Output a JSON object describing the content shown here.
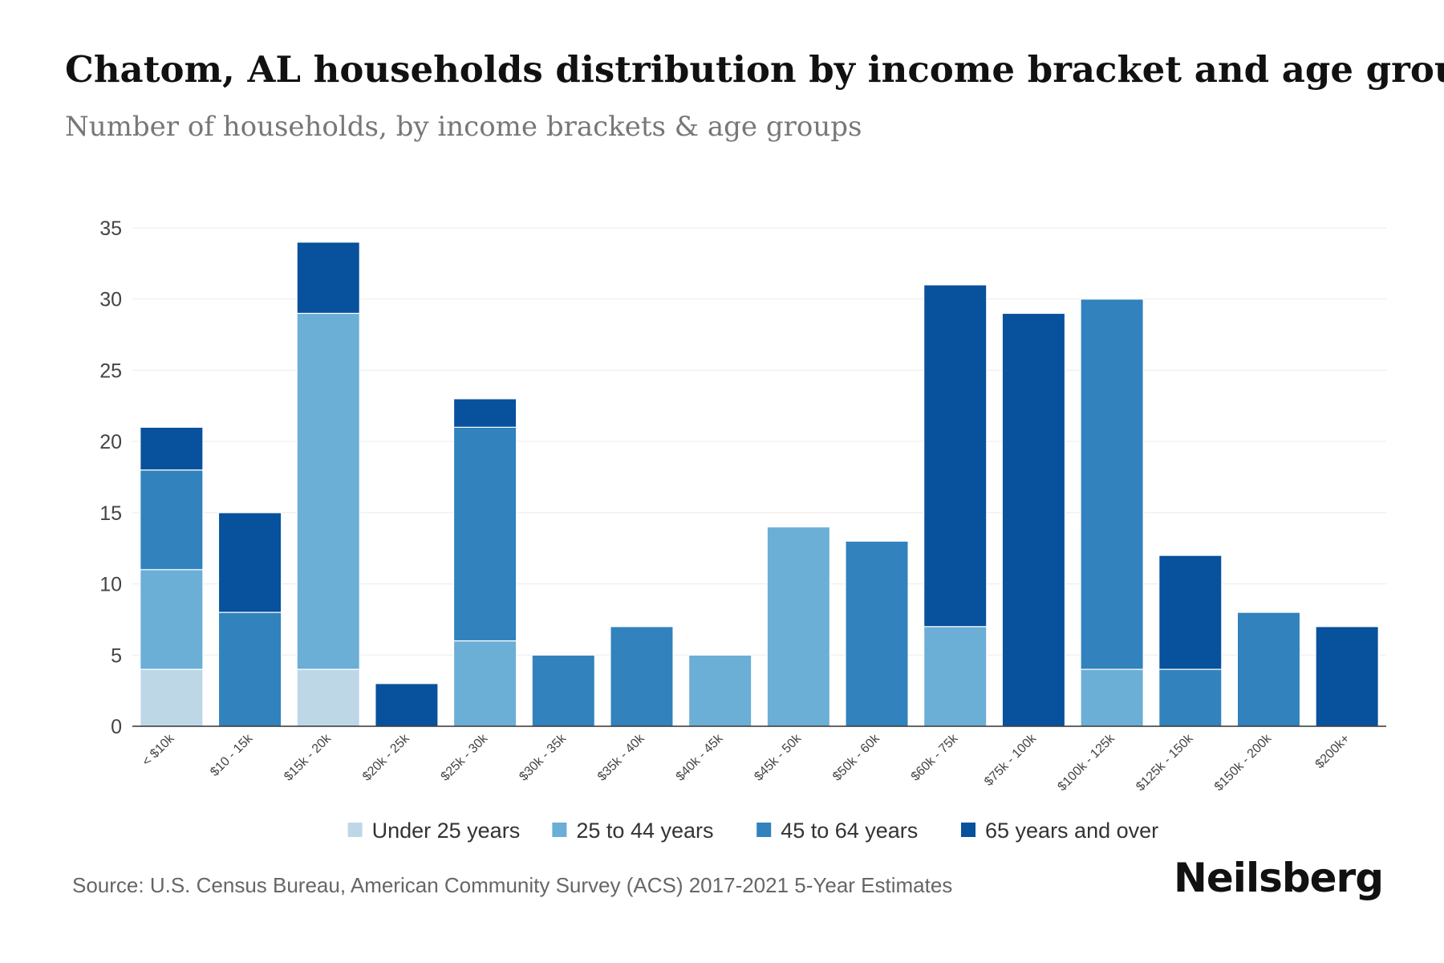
{
  "chart_data": {
    "type": "bar",
    "stacked": true,
    "title": "Chatom, AL households distribution by income bracket and age group",
    "subtitle": "Number of households, by income brackets & age groups",
    "xlabel": "",
    "ylabel": "",
    "ylim": [
      0,
      35
    ],
    "yticks": [
      0,
      5,
      10,
      15,
      20,
      25,
      30,
      35
    ],
    "grid": true,
    "legend_position": "bottom-center",
    "categories": [
      "< $10k",
      "$10 - 15k",
      "$15k - 20k",
      "$20k - 25k",
      "$25k - 30k",
      "$30k - 35k",
      "$35k - 40k",
      "$40k - 45k",
      "$45k - 50k",
      "$50k - 60k",
      "$60k - 75k",
      "$75k - 100k",
      "$100k - 125k",
      "$125k - 150k",
      "$150k - 200k",
      "$200k+"
    ],
    "series": [
      {
        "name": "Under 25 years",
        "color": "#bdd7e7",
        "values": [
          4,
          0,
          4,
          0,
          0,
          0,
          0,
          0,
          0,
          0,
          0,
          0,
          0,
          0,
          0,
          0
        ]
      },
      {
        "name": "25 to 44 years",
        "color": "#6baed6",
        "values": [
          7,
          0,
          25,
          0,
          6,
          0,
          0,
          5,
          14,
          0,
          7,
          0,
          4,
          0,
          0,
          0
        ]
      },
      {
        "name": "45 to 64 years",
        "color": "#3182bd",
        "values": [
          7,
          8,
          0,
          0,
          15,
          5,
          7,
          0,
          0,
          13,
          0,
          0,
          26,
          4,
          8,
          0
        ]
      },
      {
        "name": "65 years and over",
        "color": "#08519c",
        "values": [
          3,
          7,
          5,
          3,
          2,
          0,
          0,
          0,
          0,
          0,
          24,
          29,
          0,
          8,
          0,
          7
        ]
      }
    ]
  },
  "source": "Source: U.S. Census Bureau, American Community Survey (ACS) 2017-2021 5-Year Estimates",
  "brand": "Neilsberg"
}
